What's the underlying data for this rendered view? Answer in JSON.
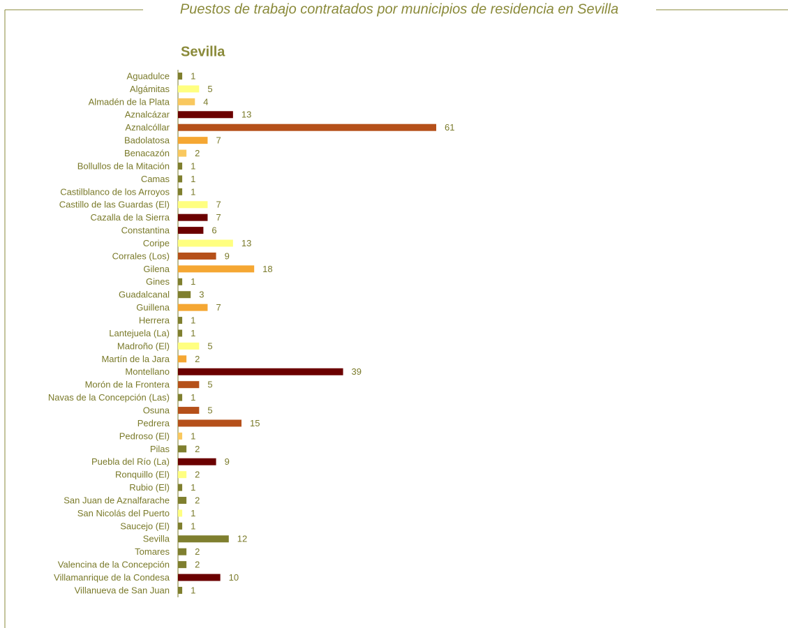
{
  "chart_data": {
    "type": "bar",
    "orientation": "horizontal",
    "title": "Puestos de trabajo contratados por municipios de residencia en Sevilla",
    "subtitle": "Sevilla",
    "categories": [
      "Aguadulce",
      "Algámitas",
      "Almadén de la Plata",
      "Aznalcázar",
      "Aznalcóllar",
      "Badolatosa",
      "Benacazón",
      "Bollullos de la Mitación",
      "Camas",
      "Castilblanco de los Arroyos",
      "Castillo de las Guardas (El)",
      "Cazalla de la Sierra",
      "Constantina",
      "Coripe",
      "Corrales (Los)",
      "Gilena",
      "Gines",
      "Guadalcanal",
      "Guillena",
      "Herrera",
      "Lantejuela (La)",
      "Madroño (El)",
      "Martín de la Jara",
      "Montellano",
      "Morón de la Frontera",
      "Navas de la Concepción (Las)",
      "Osuna",
      "Pedrera",
      "Pedroso (El)",
      "Pilas",
      "Puebla del Río (La)",
      "Ronquillo (El)",
      "Rubio (El)",
      "San Juan de Aznalfarache",
      "San Nicolás del Puerto",
      "Saucejo (El)",
      "Sevilla",
      "Tomares",
      "Valencina de la Concepción",
      "Villamanrique de la Condesa",
      "Villanueva de San Juan"
    ],
    "values": [
      1,
      5,
      4,
      13,
      61,
      7,
      2,
      1,
      1,
      1,
      7,
      7,
      6,
      13,
      9,
      18,
      1,
      3,
      7,
      1,
      1,
      5,
      2,
      39,
      5,
      1,
      5,
      15,
      1,
      2,
      9,
      2,
      1,
      2,
      1,
      1,
      12,
      2,
      2,
      10,
      1
    ],
    "colors": [
      "#7f7f2f",
      "#ffff80",
      "#f9c85f",
      "#6b0000",
      "#b5501a",
      "#f5a733",
      "#f9c85f",
      "#7f7f2f",
      "#7f7f2f",
      "#7f7f2f",
      "#ffff80",
      "#6b0000",
      "#6b0000",
      "#ffff80",
      "#b5501a",
      "#f5a733",
      "#7f7f2f",
      "#7f7f2f",
      "#f5a733",
      "#7f7f2f",
      "#7f7f2f",
      "#ffff80",
      "#f5a733",
      "#6b0000",
      "#b5501a",
      "#7f7f2f",
      "#b5501a",
      "#b5501a",
      "#f9c85f",
      "#7f7f2f",
      "#6b0000",
      "#ffff80",
      "#7f7f2f",
      "#7f7f2f",
      "#ffff80",
      "#7f7f2f",
      "#7f7f2f",
      "#7f7f2f",
      "#7f7f2f",
      "#6b0000",
      "#7f7f2f"
    ]
  }
}
